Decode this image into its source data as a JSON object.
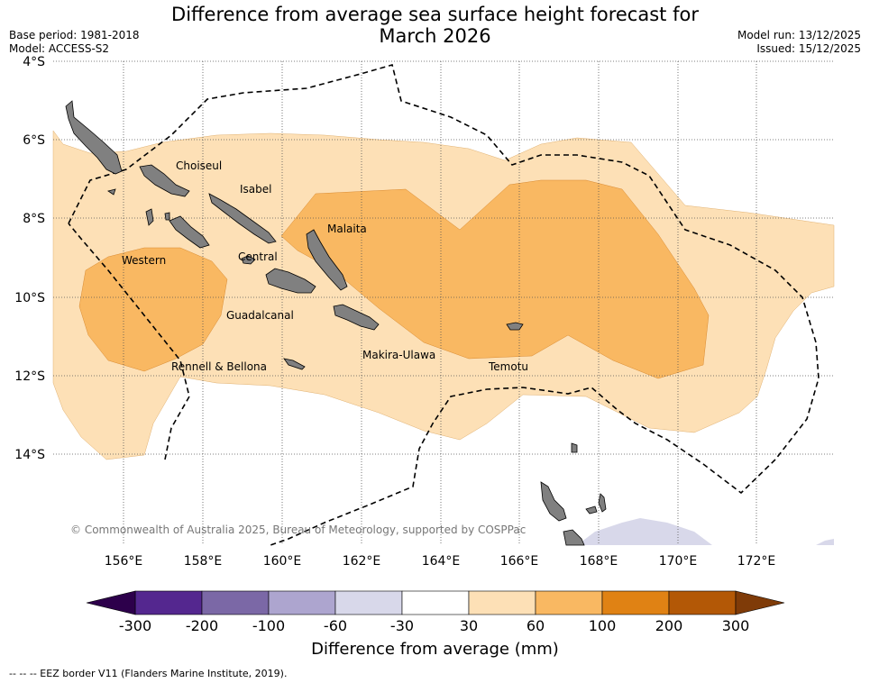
{
  "title": {
    "line1": "Difference from average sea surface height forecast for",
    "line2": "March 2026"
  },
  "meta": {
    "base_period": "Base period: 1981-2018",
    "model": "Model: ACCESS-S2",
    "model_run": "Model run: 13/12/2025",
    "issued": "Issued: 15/12/2025"
  },
  "axes": {
    "lat_labels": [
      "4°S",
      "6°S",
      "8°S",
      "10°S",
      "12°S",
      "14°S"
    ],
    "lon_labels": [
      "156°E",
      "158°E",
      "160°E",
      "162°E",
      "164°E",
      "166°E",
      "168°E",
      "170°E",
      "172°E"
    ]
  },
  "provinces": [
    "Choiseul",
    "Isabel",
    "Malaita",
    "Western",
    "Central",
    "Guadalcanal",
    "Rennell & Bellona",
    "Makira-Ulawa",
    "Temotu"
  ],
  "copyright": "© Commonwealth of Australia 2025, Bureau of Meteorology, supported by COSPPac",
  "colorbar": {
    "ticks": [
      "-300",
      "-200",
      "-100",
      "-60",
      "-30",
      "30",
      "60",
      "100",
      "200",
      "300"
    ],
    "colors": [
      "#54278f",
      "#7b68a6",
      "#ada5cf",
      "#d8d8ea",
      "#ffffff",
      "#fde0b6",
      "#f9b862",
      "#e08214",
      "#b35806"
    ],
    "under_color": "#2d004b",
    "over_color": "#7f3b08",
    "title": "Difference from average (mm)"
  },
  "colors": {
    "land": "#808080",
    "band_30_60": "#fde0b6",
    "band_60_100": "#f9b862",
    "band_neg": "#d8d8ea"
  },
  "footer": "-- -- -- EEZ border V11 (Flanders Marine Institute, 2019)."
}
